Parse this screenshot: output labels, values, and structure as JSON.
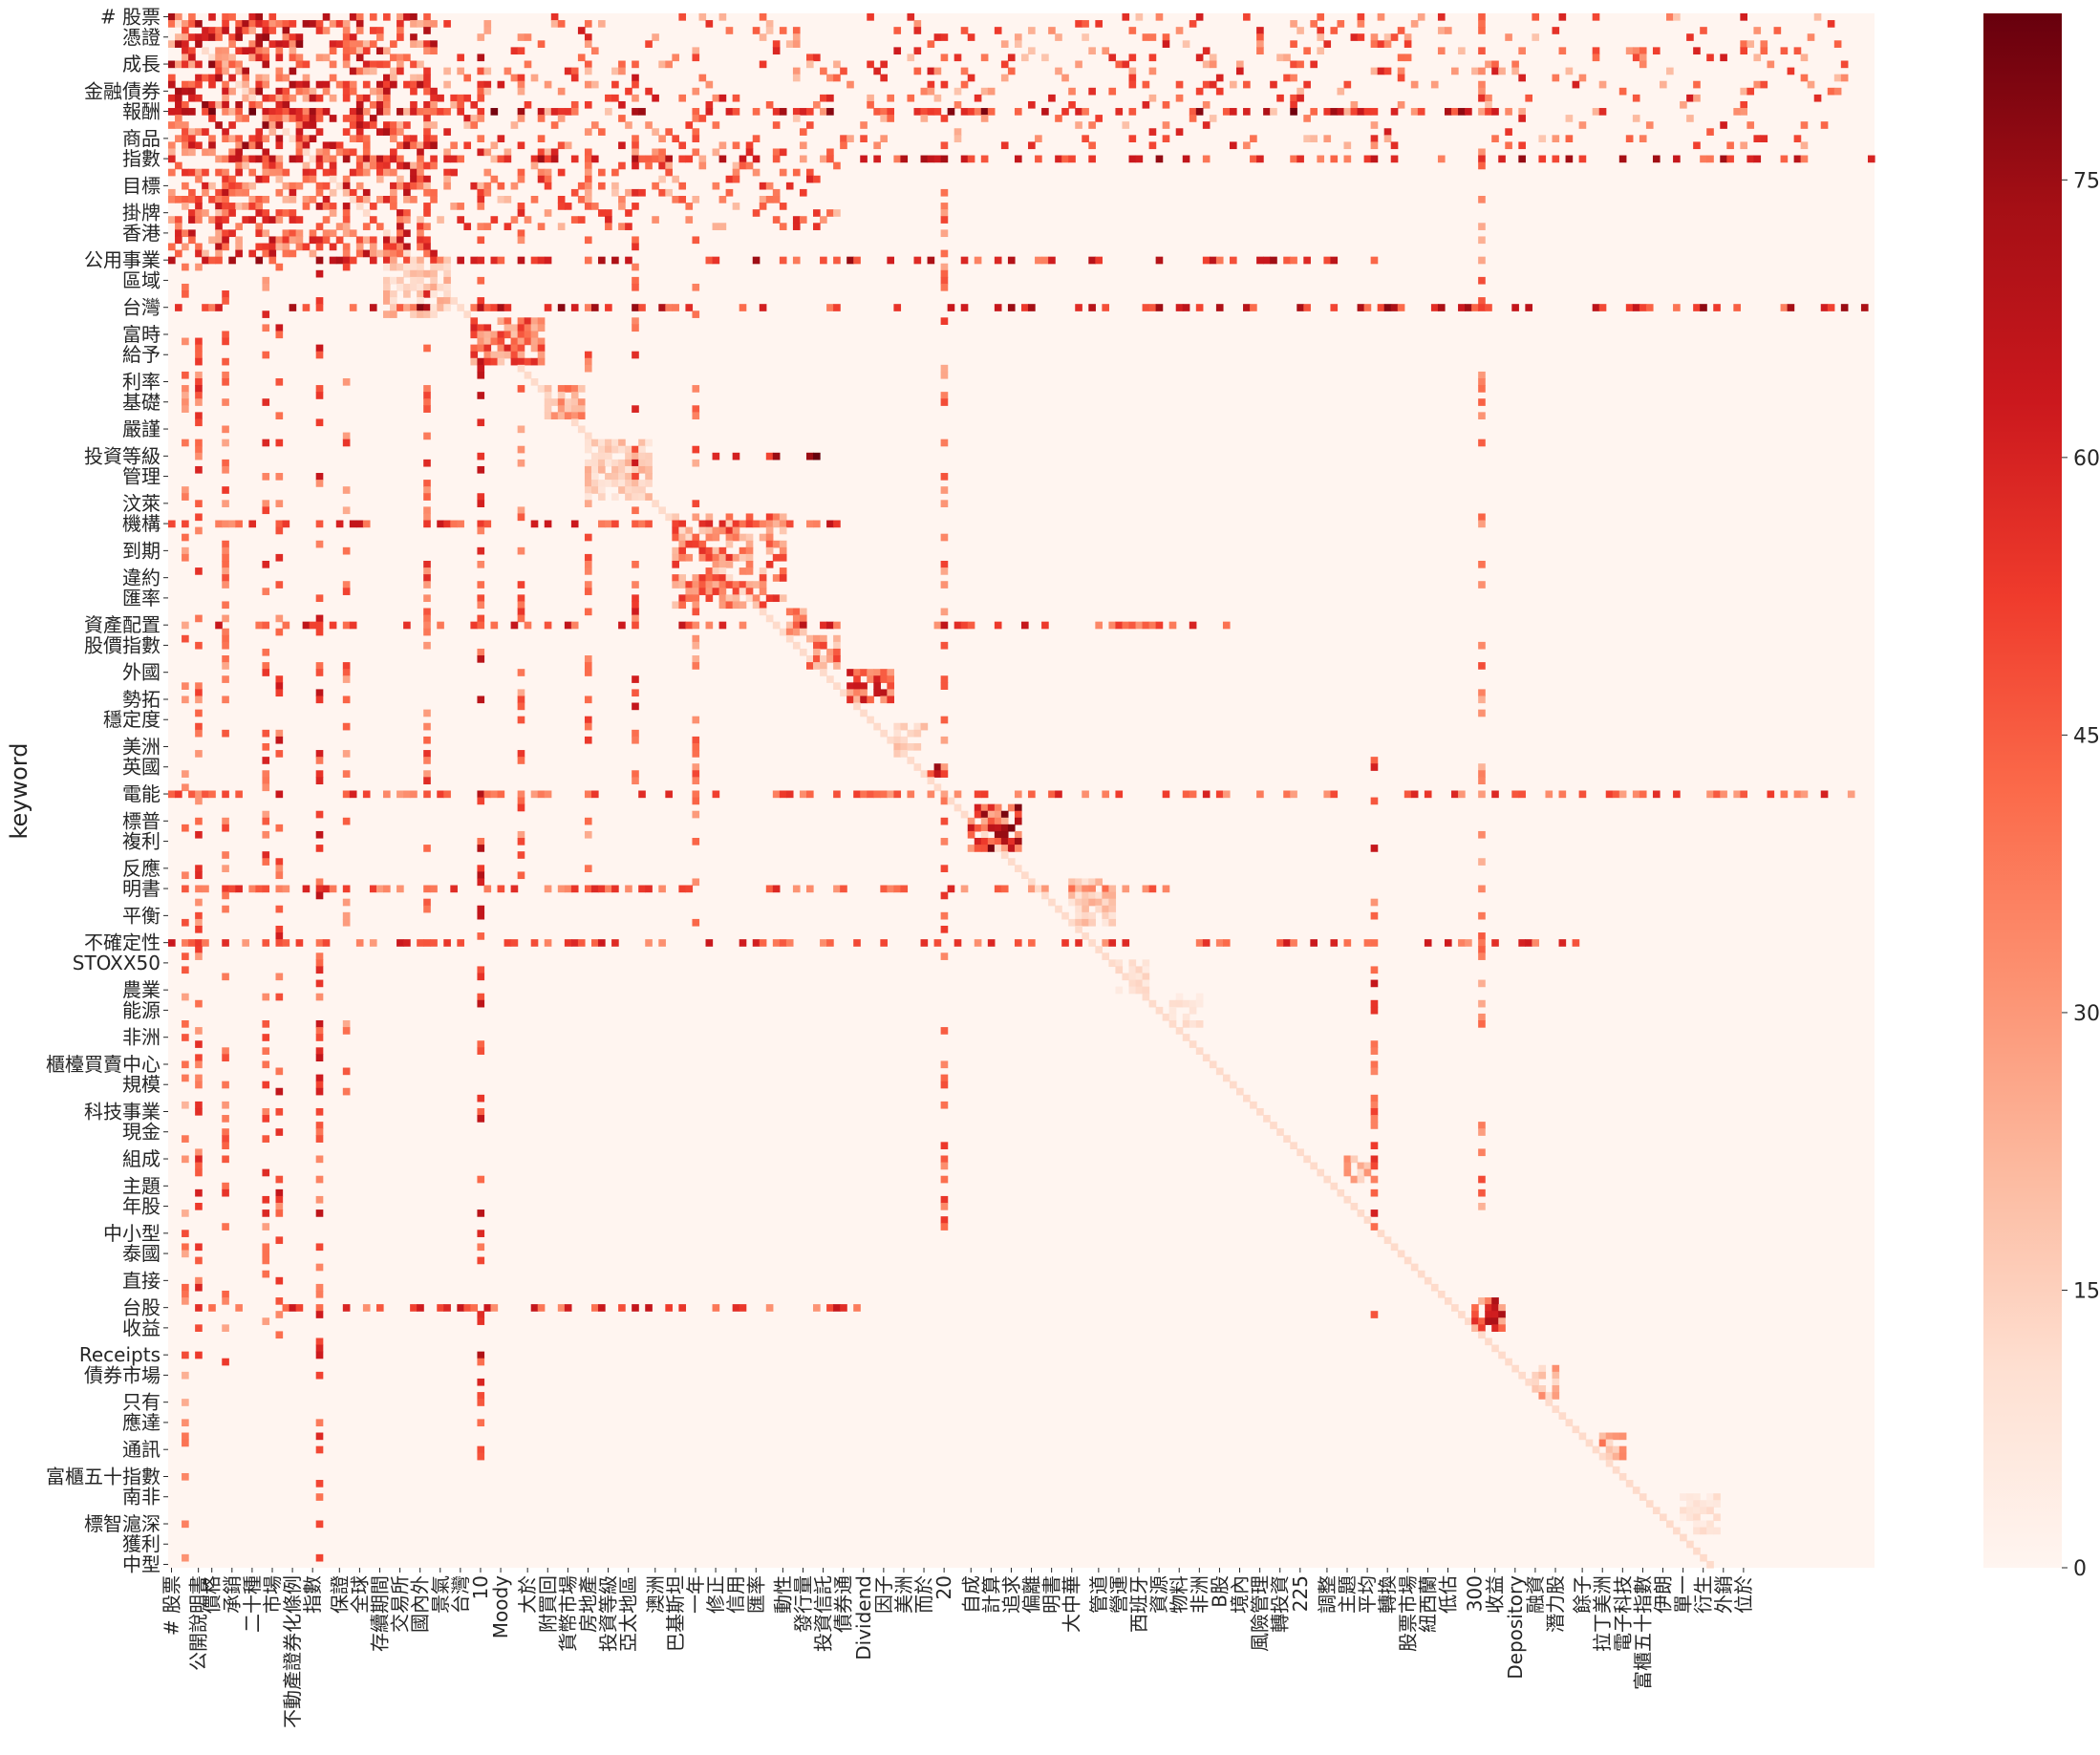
{
  "chart_data": {
    "type": "heatmap",
    "title": "",
    "xlabel": "",
    "ylabel": "keyword",
    "colormap": "Reds",
    "color_low": "#fff5f0",
    "color_high": "#67000d",
    "color_range": [
      0,
      84
    ],
    "colorbar_ticks": [
      0,
      15,
      30,
      45,
      60,
      75
    ],
    "n_rows": 230,
    "n_cols": 254,
    "row_labels": [
      {
        "index": 0,
        "text": "# 股票"
      },
      {
        "index": 3,
        "text": "憑證"
      },
      {
        "index": 7,
        "text": "成長"
      },
      {
        "index": 11,
        "text": "金融債券"
      },
      {
        "index": 14,
        "text": "報酬"
      },
      {
        "index": 18,
        "text": "商品"
      },
      {
        "index": 21,
        "text": "指數"
      },
      {
        "index": 25,
        "text": "目標"
      },
      {
        "index": 29,
        "text": "掛牌"
      },
      {
        "index": 32,
        "text": "香港"
      },
      {
        "index": 36,
        "text": "公用事業"
      },
      {
        "index": 39,
        "text": "區域"
      },
      {
        "index": 43,
        "text": "台灣"
      },
      {
        "index": 47,
        "text": "富時"
      },
      {
        "index": 50,
        "text": "給予"
      },
      {
        "index": 54,
        "text": "利率"
      },
      {
        "index": 57,
        "text": "基礎"
      },
      {
        "index": 61,
        "text": "嚴謹"
      },
      {
        "index": 65,
        "text": "投資等級"
      },
      {
        "index": 68,
        "text": "管理"
      },
      {
        "index": 72,
        "text": "汶萊"
      },
      {
        "index": 75,
        "text": "機構"
      },
      {
        "index": 79,
        "text": "到期"
      },
      {
        "index": 83,
        "text": "違約"
      },
      {
        "index": 86,
        "text": "匯率"
      },
      {
        "index": 90,
        "text": "資產配置"
      },
      {
        "index": 93,
        "text": "股價指數"
      },
      {
        "index": 97,
        "text": "外國"
      },
      {
        "index": 101,
        "text": "勢拓"
      },
      {
        "index": 104,
        "text": "穩定度"
      },
      {
        "index": 108,
        "text": "美洲"
      },
      {
        "index": 111,
        "text": "英國"
      },
      {
        "index": 115,
        "text": "電能"
      },
      {
        "index": 119,
        "text": "標普"
      },
      {
        "index": 122,
        "text": "複利"
      },
      {
        "index": 126,
        "text": "反應"
      },
      {
        "index": 129,
        "text": "明書"
      },
      {
        "index": 133,
        "text": "平衡"
      },
      {
        "index": 137,
        "text": "不確定性"
      },
      {
        "index": 140,
        "text": "STOXX50"
      },
      {
        "index": 144,
        "text": "農業"
      },
      {
        "index": 147,
        "text": "能源"
      },
      {
        "index": 151,
        "text": "非洲"
      },
      {
        "index": 155,
        "text": "櫃檯買賣中心"
      },
      {
        "index": 158,
        "text": "規模"
      },
      {
        "index": 162,
        "text": "科技事業"
      },
      {
        "index": 165,
        "text": "現金"
      },
      {
        "index": 169,
        "text": "組成"
      },
      {
        "index": 173,
        "text": "主題"
      },
      {
        "index": 176,
        "text": "年股"
      },
      {
        "index": 180,
        "text": "中小型"
      },
      {
        "index": 183,
        "text": "泰國"
      },
      {
        "index": 187,
        "text": "直接"
      },
      {
        "index": 191,
        "text": "台股"
      },
      {
        "index": 194,
        "text": "收益"
      },
      {
        "index": 198,
        "text": "Receipts"
      },
      {
        "index": 201,
        "text": "債券市場"
      },
      {
        "index": 205,
        "text": "只有"
      },
      {
        "index": 208,
        "text": "應達"
      },
      {
        "index": 212,
        "text": "通訊"
      },
      {
        "index": 216,
        "text": "富櫃五十指數"
      },
      {
        "index": 219,
        "text": "南非"
      },
      {
        "index": 223,
        "text": "標智滬深"
      },
      {
        "index": 226,
        "text": "獲利"
      },
      {
        "index": 229,
        "text": "中型"
      }
    ],
    "col_labels": [
      {
        "index": 0,
        "text": "# 股票"
      },
      {
        "index": 4,
        "text": "公開說明書"
      },
      {
        "index": 6,
        "text": "價格"
      },
      {
        "index": 9,
        "text": "承銷"
      },
      {
        "index": 12,
        "text": "二十種"
      },
      {
        "index": 15,
        "text": "市場"
      },
      {
        "index": 18,
        "text": "不動產證券化條例"
      },
      {
        "index": 21,
        "text": "指數"
      },
      {
        "index": 25,
        "text": "保證"
      },
      {
        "index": 28,
        "text": "全球"
      },
      {
        "index": 31,
        "text": "存續期間"
      },
      {
        "index": 34,
        "text": "交易所"
      },
      {
        "index": 37,
        "text": "國內外"
      },
      {
        "index": 40,
        "text": "景氣"
      },
      {
        "index": 43,
        "text": "台灣"
      },
      {
        "index": 46,
        "text": "10"
      },
      {
        "index": 49,
        "text": "Moody"
      },
      {
        "index": 53,
        "text": "大於"
      },
      {
        "index": 56,
        "text": "附買回"
      },
      {
        "index": 59,
        "text": "貨幣市場"
      },
      {
        "index": 62,
        "text": "房地產"
      },
      {
        "index": 65,
        "text": "投資等級"
      },
      {
        "index": 68,
        "text": "亞太地區"
      },
      {
        "index": 72,
        "text": "澳洲"
      },
      {
        "index": 75,
        "text": "巴基斯坦"
      },
      {
        "index": 78,
        "text": "一年"
      },
      {
        "index": 81,
        "text": "修正"
      },
      {
        "index": 84,
        "text": "信用"
      },
      {
        "index": 87,
        "text": "匯率"
      },
      {
        "index": 91,
        "text": "動性"
      },
      {
        "index": 94,
        "text": "發行量"
      },
      {
        "index": 97,
        "text": "投資信託"
      },
      {
        "index": 100,
        "text": "債券通"
      },
      {
        "index": 103,
        "text": "Dividend"
      },
      {
        "index": 106,
        "text": "因子"
      },
      {
        "index": 109,
        "text": "美洲"
      },
      {
        "index": 112,
        "text": "而於"
      },
      {
        "index": 115,
        "text": "20"
      },
      {
        "index": 119,
        "text": "自成"
      },
      {
        "index": 122,
        "text": "計算"
      },
      {
        "index": 125,
        "text": "追求"
      },
      {
        "index": 128,
        "text": "偏離"
      },
      {
        "index": 131,
        "text": "明書"
      },
      {
        "index": 134,
        "text": "大中華"
      },
      {
        "index": 138,
        "text": "管道"
      },
      {
        "index": 141,
        "text": "營運"
      },
      {
        "index": 144,
        "text": "西班牙"
      },
      {
        "index": 147,
        "text": "資源"
      },
      {
        "index": 150,
        "text": "物料"
      },
      {
        "index": 153,
        "text": "非洲"
      },
      {
        "index": 156,
        "text": "B股"
      },
      {
        "index": 159,
        "text": "境內"
      },
      {
        "index": 162,
        "text": "風險管理"
      },
      {
        "index": 165,
        "text": "轉投資"
      },
      {
        "index": 168,
        "text": "225"
      },
      {
        "index": 172,
        "text": "調整"
      },
      {
        "index": 175,
        "text": "主題"
      },
      {
        "index": 178,
        "text": "平均"
      },
      {
        "index": 181,
        "text": "轉換"
      },
      {
        "index": 184,
        "text": "股票市場"
      },
      {
        "index": 187,
        "text": "紐西蘭"
      },
      {
        "index": 190,
        "text": "低估"
      },
      {
        "index": 194,
        "text": "300"
      },
      {
        "index": 197,
        "text": "收益"
      },
      {
        "index": 200,
        "text": "Depository"
      },
      {
        "index": 203,
        "text": "融資"
      },
      {
        "index": 206,
        "text": "潛力股"
      },
      {
        "index": 210,
        "text": "餘子"
      },
      {
        "index": 213,
        "text": "拉丁美洲"
      },
      {
        "index": 216,
        "text": "電子科技"
      },
      {
        "index": 219,
        "text": "富櫃五十指數"
      },
      {
        "index": 222,
        "text": "伊朗"
      },
      {
        "index": 225,
        "text": "單一"
      },
      {
        "index": 228,
        "text": "衍生"
      },
      {
        "index": 231,
        "text": "外銷"
      },
      {
        "index": 234,
        "text": "位於"
      }
    ],
    "blocks": [
      {
        "rows": [
          0,
          20
        ],
        "cols": [
          0,
          22
        ],
        "value": 62,
        "density": 0.55
      },
      {
        "rows": [
          0,
          20
        ],
        "cols": [
          22,
          40
        ],
        "value": 58,
        "density": 0.45
      },
      {
        "rows": [
          0,
          20
        ],
        "cols": [
          40,
          250
        ],
        "value": 50,
        "density": 0.12
      },
      {
        "rows": [
          20,
          36
        ],
        "cols": [
          0,
          40
        ],
        "value": 55,
        "density": 0.45
      },
      {
        "rows": [
          20,
          32
        ],
        "cols": [
          40,
          100
        ],
        "value": 48,
        "density": 0.2
      },
      {
        "rows": [
          36,
          45
        ],
        "cols": [
          32,
          42
        ],
        "value": 22,
        "density": 0.7
      },
      {
        "rows": [
          45,
          52
        ],
        "cols": [
          45,
          56
        ],
        "value": 48,
        "density": 0.75
      },
      {
        "rows": [
          55,
          60
        ],
        "cols": [
          56,
          62
        ],
        "value": 38,
        "density": 0.7
      },
      {
        "rows": [
          63,
          72
        ],
        "cols": [
          62,
          72
        ],
        "value": 20,
        "density": 0.85
      },
      {
        "rows": [
          74,
          88
        ],
        "cols": [
          75,
          92
        ],
        "value": 45,
        "density": 0.55
      },
      {
        "rows": [
          88,
          92
        ],
        "cols": [
          92,
          95
        ],
        "value": 40,
        "density": 0.8
      },
      {
        "rows": [
          92,
          97
        ],
        "cols": [
          95,
          100
        ],
        "value": 42,
        "density": 0.8
      },
      {
        "rows": [
          97,
          102
        ],
        "cols": [
          101,
          108
        ],
        "value": 55,
        "density": 0.85
      },
      {
        "rows": [
          105,
          110
        ],
        "cols": [
          108,
          113
        ],
        "value": 18,
        "density": 0.6
      },
      {
        "rows": [
          111,
          113
        ],
        "cols": [
          113,
          116
        ],
        "value": 72,
        "density": 0.9
      },
      {
        "rows": [
          117,
          124
        ],
        "cols": [
          119,
          127
        ],
        "value": 65,
        "density": 0.85
      },
      {
        "rows": [
          128,
          135
        ],
        "cols": [
          134,
          141
        ],
        "value": 20,
        "density": 0.8
      },
      {
        "rows": [
          140,
          145
        ],
        "cols": [
          141,
          146
        ],
        "value": 12,
        "density": 0.6
      },
      {
        "rows": [
          145,
          150
        ],
        "cols": [
          149,
          154
        ],
        "value": 12,
        "density": 0.6
      },
      {
        "rows": [
          169,
          173
        ],
        "cols": [
          175,
          179
        ],
        "value": 30,
        "density": 0.8
      },
      {
        "rows": [
          190,
          195
        ],
        "cols": [
          194,
          199
        ],
        "value": 60,
        "density": 0.8
      },
      {
        "rows": [
          200,
          205
        ],
        "cols": [
          203,
          207
        ],
        "value": 28,
        "density": 0.7
      },
      {
        "rows": [
          210,
          214
        ],
        "cols": [
          213,
          217
        ],
        "value": 32,
        "density": 0.8
      },
      {
        "rows": [
          219,
          225
        ],
        "cols": [
          225,
          231
        ],
        "value": 10,
        "density": 0.7
      }
    ],
    "strong_streaks": [
      {
        "kind": "row",
        "index": 14,
        "cols": [
          0,
          200
        ],
        "value": 75
      },
      {
        "kind": "row",
        "index": 21,
        "cols": [
          0,
          254
        ],
        "value": 70
      },
      {
        "kind": "row",
        "index": 36,
        "cols": [
          0,
          180
        ],
        "value": 70
      },
      {
        "kind": "row",
        "index": 43,
        "cols": [
          0,
          254
        ],
        "value": 72
      },
      {
        "kind": "row",
        "index": 65,
        "cols": [
          80,
          100
        ],
        "value": 78
      },
      {
        "kind": "row",
        "index": 75,
        "cols": [
          0,
          100
        ],
        "value": 60
      },
      {
        "kind": "row",
        "index": 90,
        "cols": [
          0,
          160
        ],
        "value": 62
      },
      {
        "kind": "row",
        "index": 115,
        "cols": [
          0,
          254
        ],
        "value": 55
      },
      {
        "kind": "row",
        "index": 129,
        "cols": [
          0,
          150
        ],
        "value": 55
      },
      {
        "kind": "row",
        "index": 137,
        "cols": [
          0,
          210
        ],
        "value": 58
      },
      {
        "kind": "row",
        "index": 191,
        "cols": [
          0,
          110
        ],
        "value": 60
      },
      {
        "kind": "col",
        "index": 2,
        "rows": [
          0,
          230
        ],
        "value": 45
      },
      {
        "kind": "col",
        "index": 4,
        "rows": [
          0,
          200
        ],
        "value": 55
      },
      {
        "kind": "col",
        "index": 8,
        "rows": [
          0,
          200
        ],
        "value": 50
      },
      {
        "kind": "col",
        "index": 14,
        "rows": [
          0,
          200
        ],
        "value": 55
      },
      {
        "kind": "col",
        "index": 16,
        "rows": [
          0,
          200
        ],
        "value": 60
      },
      {
        "kind": "col",
        "index": 22,
        "rows": [
          0,
          230
        ],
        "value": 62
      },
      {
        "kind": "col",
        "index": 26,
        "rows": [
          0,
          160
        ],
        "value": 50
      },
      {
        "kind": "col",
        "index": 38,
        "rows": [
          0,
          140
        ],
        "value": 55
      },
      {
        "kind": "col",
        "index": 46,
        "rows": [
          0,
          215
        ],
        "value": 65
      },
      {
        "kind": "col",
        "index": 52,
        "rows": [
          0,
          130
        ],
        "value": 50
      },
      {
        "kind": "col",
        "index": 62,
        "rows": [
          0,
          130
        ],
        "value": 50
      },
      {
        "kind": "col",
        "index": 69,
        "rows": [
          0,
          125
        ],
        "value": 60
      },
      {
        "kind": "col",
        "index": 78,
        "rows": [
          0,
          140
        ],
        "value": 48
      },
      {
        "kind": "col",
        "index": 115,
        "rows": [
          0,
          180
        ],
        "value": 50
      },
      {
        "kind": "col",
        "index": 179,
        "rows": [
          110,
          195
        ],
        "value": 60
      },
      {
        "kind": "col",
        "index": 195,
        "rows": [
          0,
          180
        ],
        "value": 45
      }
    ]
  }
}
